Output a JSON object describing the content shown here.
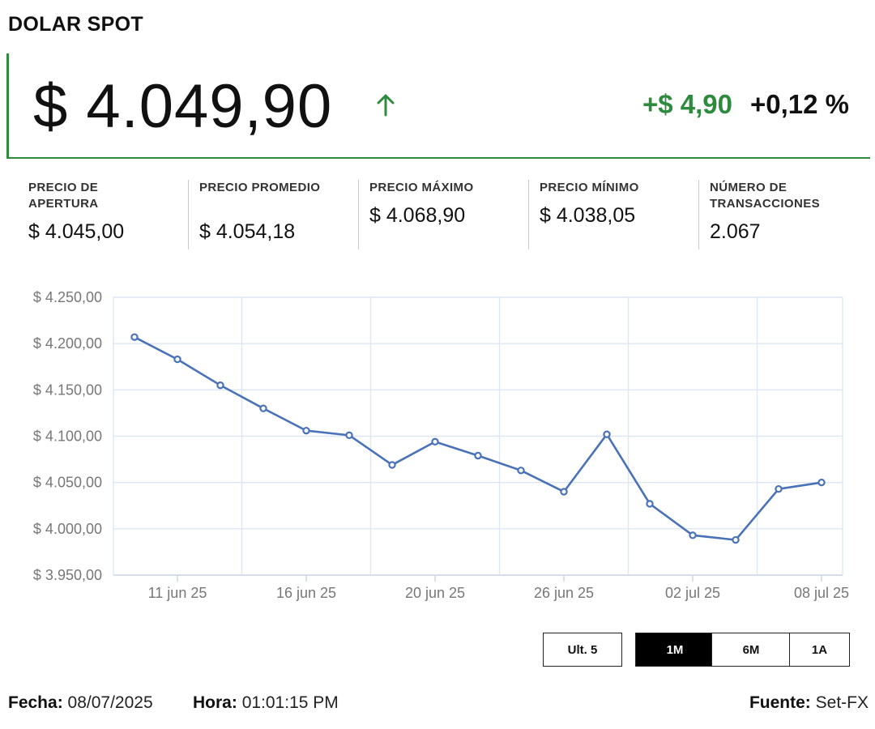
{
  "title": "DOLAR SPOT",
  "price": "$ 4.049,90",
  "trend_icon": "arrow-up",
  "change_abs": "+$ 4,90",
  "change_pct": "+0,12 %",
  "colors": {
    "accent": "#2e8b3e",
    "line": "#4a72b8"
  },
  "stats": [
    {
      "label": "PRECIO DE APERTURA",
      "value": "$ 4.045,00"
    },
    {
      "label": "PRECIO PROMEDIO",
      "value": "$ 4.054,18"
    },
    {
      "label": "PRECIO MÁXIMO",
      "value": "$ 4.068,90"
    },
    {
      "label": "PRECIO MÍNIMO",
      "value": "$ 4.038,05"
    },
    {
      "label": "NÚMERO DE TRANSACCIONES",
      "value": "2.067"
    }
  ],
  "chart_data": {
    "type": "line",
    "ylim": [
      3950,
      4250
    ],
    "y_ticks": [
      4250,
      4200,
      4150,
      4100,
      4050,
      4000,
      3950
    ],
    "y_tick_labels": [
      "$ 4.250,00",
      "$ 4.200,00",
      "$ 4.150,00",
      "$ 4.100,00",
      "$ 4.050,00",
      "$ 4.000,00",
      "$ 3.950,00"
    ],
    "x_tick_labels": [
      "11 jun 25",
      "16 jun 25",
      "20 jun 25",
      "26 jun 25",
      "02 jul 25",
      "08 jul 25"
    ],
    "x_tick_index": [
      1,
      4,
      7,
      10,
      13,
      16
    ],
    "x": [
      "10 jun 25",
      "11 jun 25",
      "12 jun 25",
      "13 jun 25",
      "16 jun 25",
      "17 jun 25",
      "18 jun 25",
      "20 jun 25",
      "24 jun 25",
      "25 jun 25",
      "26 jun 25",
      "27 jun 25",
      "30 jun 25",
      "02 jul 25",
      "03 jul 25",
      "04 jul 25",
      "08 jul 25"
    ],
    "values": [
      4207,
      4183,
      4155,
      4130,
      4106,
      4101,
      4069,
      4094,
      4079,
      4063,
      4040,
      4102,
      4027,
      3993,
      3988,
      4043,
      4050
    ],
    "grid": true
  },
  "ranges": [
    "Ult. 5",
    "1M",
    "6M",
    "1A"
  ],
  "active_range": "1M",
  "footer": {
    "date_label": "Fecha:",
    "date": "08/07/2025",
    "time_label": "Hora:",
    "time": "01:01:15 PM",
    "source_label": "Fuente:",
    "source": "Set-FX"
  }
}
